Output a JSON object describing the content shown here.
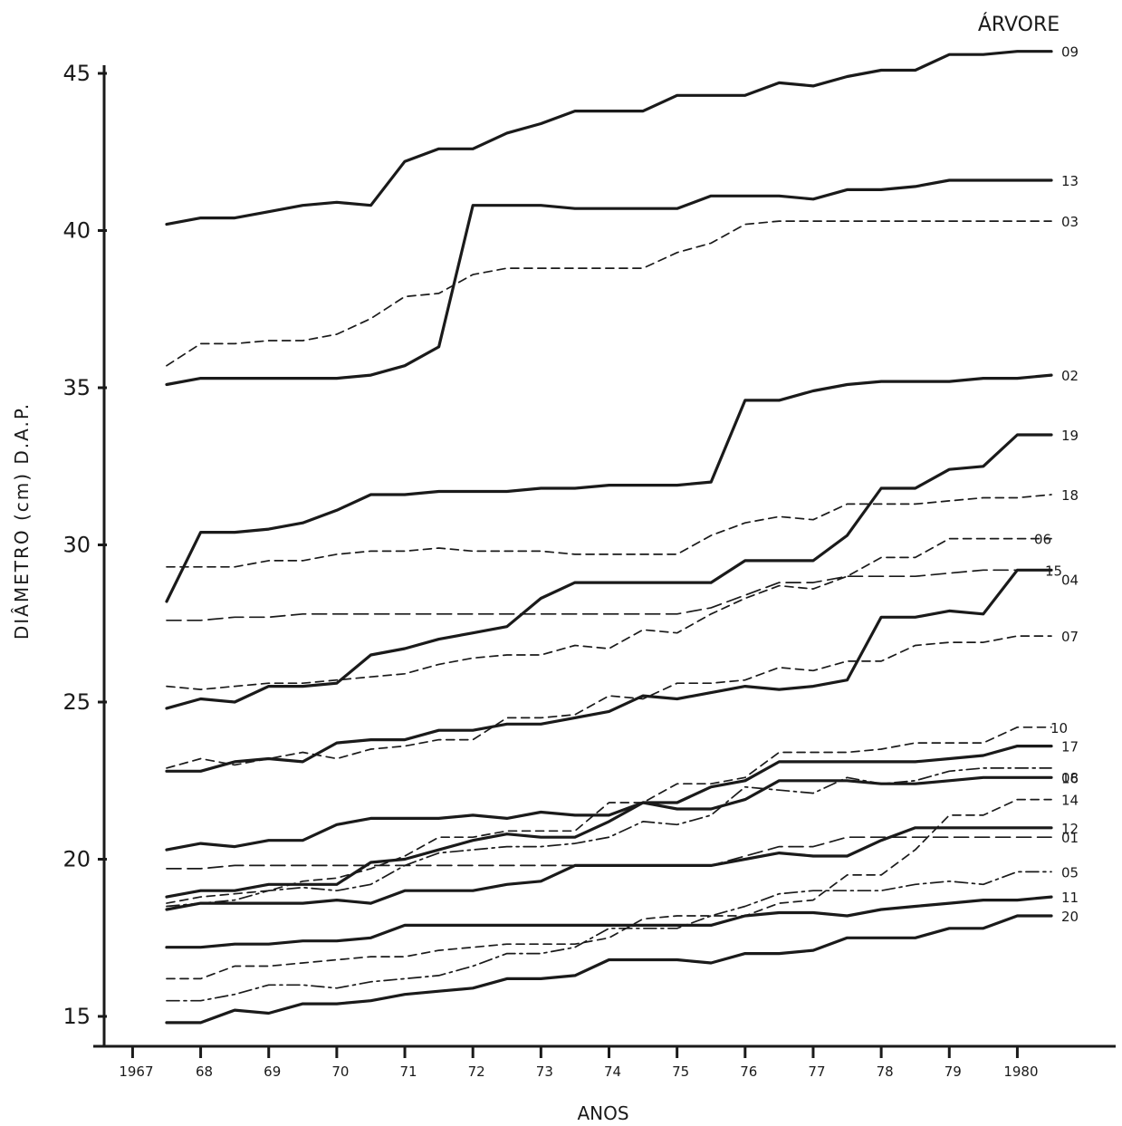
{
  "chart_data": {
    "type": "line",
    "title": "",
    "xlabel": "ANOS",
    "ylabel": "DIÂMETRO (cm) D.A.P.",
    "legend_title": "ÁRVORE",
    "xlim": [
      1966.7,
      1980.5
    ],
    "ylim": [
      13.2,
      46.2
    ],
    "yticks": [
      15,
      20,
      25,
      30,
      35,
      40,
      45
    ],
    "ytick_labels": [
      "15",
      "20",
      "25",
      "30",
      "35",
      "40",
      "45"
    ],
    "xticks": [
      1967,
      1968,
      1969,
      1970,
      1971,
      1972,
      1973,
      1974,
      1975,
      1976,
      1977,
      1978,
      1979,
      1980
    ],
    "xtick_labels": [
      "1967",
      "68",
      "69",
      "70",
      "71",
      "72",
      "73",
      "74",
      "75",
      "76",
      "77",
      "78",
      "79",
      "1980"
    ],
    "x": [
      1967.0,
      1967.5,
      1968.0,
      1968.5,
      1969.0,
      1969.5,
      1970.0,
      1970.5,
      1971.0,
      1971.5,
      1972.0,
      1972.5,
      1973.0,
      1973.5,
      1974.0,
      1974.5,
      1975.0,
      1975.5,
      1976.0,
      1976.5,
      1977.0,
      1977.5,
      1978.0,
      1978.5,
      1979.0,
      1979.5,
      1980.0
    ],
    "series": [
      {
        "name": "09",
        "style": "solid",
        "values": [
          40.2,
          40.4,
          40.4,
          40.6,
          40.8,
          40.9,
          40.8,
          42.2,
          42.6,
          42.6,
          43.1,
          43.4,
          43.8,
          43.8,
          43.8,
          44.3,
          44.3,
          44.3,
          44.7,
          44.6,
          44.9,
          45.1,
          45.1,
          45.6,
          45.6,
          45.7,
          45.7
        ]
      },
      {
        "name": "13",
        "style": "solid",
        "values": [
          35.1,
          35.3,
          35.3,
          35.3,
          35.3,
          35.3,
          35.4,
          35.7,
          36.3,
          40.8,
          40.8,
          40.8,
          40.7,
          40.7,
          40.7,
          40.7,
          41.1,
          41.1,
          41.1,
          41.0,
          41.3,
          41.3,
          41.4,
          41.6,
          41.6,
          41.6,
          41.6
        ]
      },
      {
        "name": "03",
        "style": "dash",
        "values": [
          35.7,
          36.4,
          36.4,
          36.5,
          36.5,
          36.7,
          37.2,
          37.9,
          38.0,
          38.6,
          38.8,
          38.8,
          38.8,
          38.8,
          38.8,
          39.3,
          39.6,
          40.2,
          40.3,
          40.3,
          40.3,
          40.3,
          40.3,
          40.3,
          40.3,
          40.3,
          40.3
        ]
      },
      {
        "name": "02",
        "style": "solid",
        "values": [
          28.2,
          30.4,
          30.4,
          30.5,
          30.7,
          31.1,
          31.6,
          31.6,
          31.7,
          31.7,
          31.7,
          31.8,
          31.8,
          31.9,
          31.9,
          31.9,
          32.0,
          34.6,
          34.6,
          34.9,
          35.1,
          35.2,
          35.2,
          35.2,
          35.3,
          35.3,
          35.4
        ]
      },
      {
        "name": "19",
        "style": "solid",
        "values": [
          24.8,
          25.1,
          25.0,
          25.5,
          25.5,
          25.6,
          26.5,
          26.7,
          27.0,
          27.2,
          27.4,
          28.3,
          28.8,
          28.8,
          28.8,
          28.8,
          28.8,
          29.5,
          29.5,
          29.5,
          30.3,
          31.8,
          31.8,
          32.4,
          32.5,
          33.5,
          33.5
        ]
      },
      {
        "name": "18",
        "style": "dash",
        "values": [
          29.3,
          29.3,
          29.3,
          29.5,
          29.5,
          29.7,
          29.8,
          29.8,
          29.9,
          29.8,
          29.8,
          29.8,
          29.7,
          29.7,
          29.7,
          29.7,
          30.3,
          30.7,
          30.9,
          30.8,
          31.3,
          31.3,
          31.3,
          31.4,
          31.5,
          31.5,
          31.6
        ]
      },
      {
        "name": "06",
        "style": "dash",
        "values": [
          25.5,
          25.4,
          25.5,
          25.6,
          25.6,
          25.7,
          25.8,
          25.9,
          26.2,
          26.4,
          26.5,
          26.5,
          26.8,
          26.7,
          27.3,
          27.2,
          27.8,
          28.3,
          28.7,
          28.6,
          29.0,
          29.6,
          29.6,
          30.2,
          30.2,
          30.2,
          30.2
        ]
      },
      {
        "name": "15",
        "style": "longdash",
        "values": [
          27.6,
          27.6,
          27.7,
          27.7,
          27.8,
          27.8,
          27.8,
          27.8,
          27.8,
          27.8,
          27.8,
          27.8,
          27.8,
          27.8,
          27.8,
          27.8,
          28.0,
          28.4,
          28.8,
          28.8,
          29.0,
          29.0,
          29.0,
          29.1,
          29.2,
          29.2,
          29.2
        ]
      },
      {
        "name": "04",
        "style": "solid",
        "values": [
          22.8,
          22.8,
          23.1,
          23.2,
          23.1,
          23.7,
          23.8,
          23.8,
          24.1,
          24.1,
          24.3,
          24.3,
          24.5,
          24.7,
          25.2,
          25.1,
          25.3,
          25.5,
          25.4,
          25.5,
          25.7,
          27.7,
          27.7,
          27.9,
          27.8,
          29.2,
          29.2
        ]
      },
      {
        "name": "07",
        "style": "dash",
        "values": [
          22.9,
          23.2,
          23.0,
          23.2,
          23.4,
          23.2,
          23.5,
          23.6,
          23.8,
          23.8,
          24.5,
          24.5,
          24.6,
          25.2,
          25.1,
          25.6,
          25.6,
          25.7,
          26.1,
          26.0,
          26.3,
          26.3,
          26.8,
          26.9,
          26.9,
          27.1,
          27.1
        ]
      },
      {
        "name": "10",
        "style": "dash",
        "values": [
          18.6,
          18.8,
          18.9,
          19.0,
          19.3,
          19.4,
          19.7,
          20.1,
          20.7,
          20.7,
          20.9,
          20.9,
          20.9,
          21.8,
          21.8,
          22.4,
          22.4,
          22.6,
          23.4,
          23.4,
          23.4,
          23.5,
          23.7,
          23.7,
          23.7,
          24.2,
          24.2
        ]
      },
      {
        "name": "17",
        "style": "solid",
        "values": [
          18.8,
          19.0,
          19.0,
          19.2,
          19.2,
          19.2,
          19.9,
          20.0,
          20.3,
          20.6,
          20.8,
          20.7,
          20.7,
          21.2,
          21.8,
          21.8,
          22.3,
          22.5,
          23.1,
          23.1,
          23.1,
          23.1,
          23.1,
          23.2,
          23.3,
          23.6,
          23.6
        ]
      },
      {
        "name": "08",
        "style": "dashdot",
        "values": [
          18.5,
          18.6,
          18.7,
          19.0,
          19.1,
          19.0,
          19.2,
          19.8,
          20.2,
          20.3,
          20.4,
          20.4,
          20.5,
          20.7,
          21.2,
          21.1,
          21.4,
          22.3,
          22.2,
          22.1,
          22.6,
          22.4,
          22.5,
          22.8,
          22.9,
          22.9,
          22.9
        ]
      },
      {
        "name": "16",
        "style": "solid",
        "values": [
          20.3,
          20.5,
          20.4,
          20.6,
          20.6,
          21.1,
          21.3,
          21.3,
          21.3,
          21.4,
          21.3,
          21.5,
          21.4,
          21.4,
          21.8,
          21.6,
          21.6,
          21.9,
          22.5,
          22.5,
          22.5,
          22.4,
          22.4,
          22.5,
          22.6,
          22.6,
          22.6
        ]
      },
      {
        "name": "14",
        "style": "dash",
        "values": [
          16.2,
          16.2,
          16.6,
          16.6,
          16.7,
          16.8,
          16.9,
          16.9,
          17.1,
          17.2,
          17.3,
          17.3,
          17.3,
          17.5,
          18.1,
          18.2,
          18.2,
          18.2,
          18.6,
          18.7,
          19.5,
          19.5,
          20.3,
          21.4,
          21.4,
          21.9,
          21.9
        ]
      },
      {
        "name": "12",
        "style": "solid",
        "values": [
          18.4,
          18.6,
          18.6,
          18.6,
          18.6,
          18.7,
          18.6,
          19.0,
          19.0,
          19.0,
          19.2,
          19.3,
          19.8,
          19.8,
          19.8,
          19.8,
          19.8,
          20.0,
          20.2,
          20.1,
          20.1,
          20.6,
          21.0,
          21.0,
          21.0,
          21.0,
          21.0
        ]
      },
      {
        "name": "01",
        "style": "longdash",
        "values": [
          19.7,
          19.7,
          19.8,
          19.8,
          19.8,
          19.8,
          19.8,
          19.8,
          19.8,
          19.8,
          19.8,
          19.8,
          19.8,
          19.8,
          19.8,
          19.8,
          19.8,
          20.1,
          20.4,
          20.4,
          20.7,
          20.7,
          20.7,
          20.7,
          20.7,
          20.7,
          20.7
        ]
      },
      {
        "name": "05",
        "style": "dashdot",
        "values": [
          15.5,
          15.5,
          15.7,
          16.0,
          16.0,
          15.9,
          16.1,
          16.2,
          16.3,
          16.6,
          17.0,
          17.0,
          17.2,
          17.8,
          17.8,
          17.8,
          18.2,
          18.5,
          18.9,
          19.0,
          19.0,
          19.0,
          19.2,
          19.3,
          19.2,
          19.6,
          19.6
        ]
      },
      {
        "name": "11",
        "style": "solid",
        "values": [
          17.2,
          17.2,
          17.3,
          17.3,
          17.4,
          17.4,
          17.5,
          17.9,
          17.9,
          17.9,
          17.9,
          17.9,
          17.9,
          17.9,
          17.9,
          17.9,
          17.9,
          18.2,
          18.3,
          18.3,
          18.2,
          18.4,
          18.5,
          18.6,
          18.7,
          18.7,
          18.8
        ]
      },
      {
        "name": "20",
        "style": "solid",
        "values": [
          14.8,
          14.8,
          15.2,
          15.1,
          15.4,
          15.4,
          15.5,
          15.7,
          15.8,
          15.9,
          16.2,
          16.2,
          16.3,
          16.8,
          16.8,
          16.8,
          16.7,
          17.0,
          17.0,
          17.1,
          17.5,
          17.5,
          17.5,
          17.8,
          17.8,
          18.2,
          18.2
        ]
      }
    ]
  }
}
